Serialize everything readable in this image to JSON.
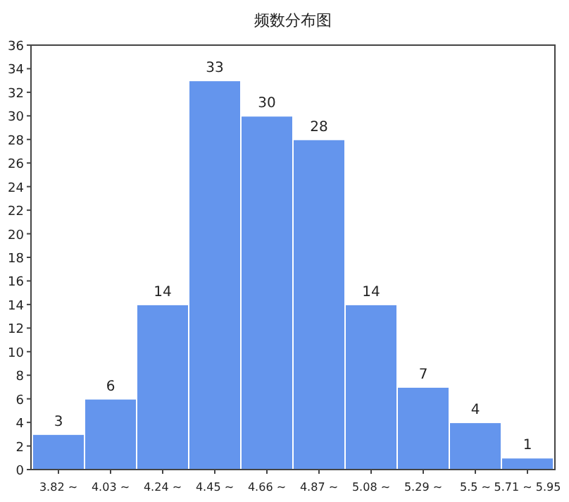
{
  "chart_data": {
    "type": "bar",
    "title": "频数分布图",
    "categories": [
      "3.82 ~",
      "4.03 ~",
      "4.24 ~",
      "4.45 ~",
      "4.66 ~",
      "4.87 ~",
      "5.08 ~",
      "5.29 ~",
      "5.5 ~",
      "5.71 ~ 5.95"
    ],
    "values": [
      3,
      6,
      14,
      33,
      30,
      28,
      14,
      7,
      4,
      1
    ],
    "color": "#6495ed",
    "ylim": [
      0,
      36
    ],
    "yticks": [
      0,
      2,
      4,
      6,
      8,
      10,
      12,
      14,
      16,
      18,
      20,
      22,
      24,
      26,
      28,
      30,
      32,
      34,
      36
    ],
    "data_labels": true
  }
}
